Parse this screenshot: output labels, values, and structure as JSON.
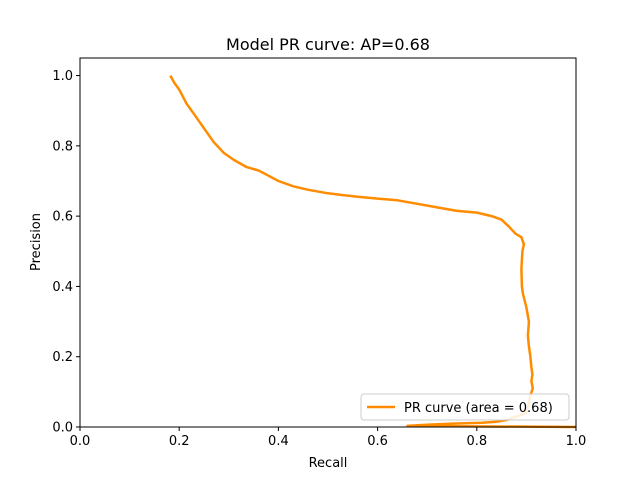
{
  "chart_data": {
    "type": "line",
    "title": "Model PR curve: AP=0.68",
    "xlabel": "Recall",
    "ylabel": "Precision",
    "xlim": [
      0.0,
      1.0
    ],
    "ylim": [
      0.0,
      1.05
    ],
    "xticks": [
      "0.0",
      "0.2",
      "0.4",
      "0.6",
      "0.8",
      "1.0"
    ],
    "yticks": [
      "0.0",
      "0.2",
      "0.4",
      "0.6",
      "0.8",
      "1.0"
    ],
    "grid": false,
    "legend_position": "lower right",
    "series": [
      {
        "name": "PR curve (area = 0.68)",
        "color": "#ff8c00",
        "x": [
          0.182,
          0.19,
          0.2,
          0.215,
          0.23,
          0.25,
          0.27,
          0.29,
          0.31,
          0.335,
          0.36,
          0.38,
          0.4,
          0.43,
          0.46,
          0.5,
          0.53,
          0.56,
          0.6,
          0.64,
          0.68,
          0.72,
          0.76,
          0.8,
          0.83,
          0.85,
          0.865,
          0.878,
          0.89,
          0.895,
          0.892,
          0.89,
          0.891,
          0.893,
          0.9,
          0.905,
          0.903,
          0.905,
          0.908,
          0.91,
          0.912,
          0.91,
          0.913,
          0.908,
          0.905,
          0.9,
          0.86,
          0.84,
          0.81,
          0.76,
          0.72,
          0.68,
          0.66,
          1.0
        ],
        "y": [
          1.0,
          0.98,
          0.96,
          0.92,
          0.89,
          0.85,
          0.81,
          0.78,
          0.76,
          0.74,
          0.73,
          0.715,
          0.7,
          0.685,
          0.675,
          0.665,
          0.66,
          0.655,
          0.65,
          0.645,
          0.635,
          0.625,
          0.615,
          0.61,
          0.6,
          0.59,
          0.57,
          0.55,
          0.54,
          0.52,
          0.5,
          0.45,
          0.4,
          0.38,
          0.34,
          0.3,
          0.26,
          0.23,
          0.2,
          0.17,
          0.15,
          0.13,
          0.11,
          0.09,
          0.07,
          0.04,
          0.02,
          0.015,
          0.012,
          0.01,
          0.008,
          0.005,
          0.003,
          0.0
        ]
      }
    ]
  }
}
